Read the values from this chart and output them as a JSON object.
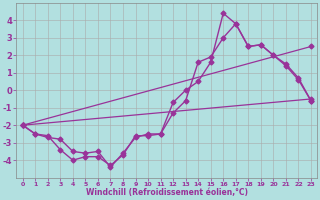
{
  "xlabel": "Windchill (Refroidissement éolien,°C)",
  "background_color": "#b2e0e0",
  "grid_color": "#aaaaaa",
  "line_color": "#993399",
  "xlim": [
    -0.5,
    23.5
  ],
  "ylim": [
    -5,
    5
  ],
  "xticks": [
    0,
    1,
    2,
    3,
    4,
    5,
    6,
    7,
    8,
    9,
    10,
    11,
    12,
    13,
    14,
    15,
    16,
    17,
    18,
    19,
    20,
    21,
    22,
    23
  ],
  "yticks": [
    -4,
    -3,
    -2,
    -1,
    0,
    1,
    2,
    3,
    4
  ],
  "series": [
    {
      "x": [
        0,
        1,
        2,
        3,
        4,
        5,
        6,
        7,
        8,
        9,
        10,
        11,
        12,
        13,
        14,
        15,
        16,
        17,
        18,
        19,
        20,
        21,
        22,
        23
      ],
      "y": [
        -2,
        -2.5,
        -2.7,
        -2.8,
        -3.5,
        -3.6,
        -3.5,
        -4.4,
        -3.6,
        -2.7,
        -2.5,
        -2.5,
        -0.7,
        0.0,
        0.5,
        1.6,
        4.4,
        3.8,
        2.5,
        2.6,
        2.0,
        1.5,
        0.7,
        -0.6
      ],
      "marker": "D",
      "markersize": 2.5,
      "linewidth": 1.0,
      "has_marker": true
    },
    {
      "x": [
        0,
        1,
        2,
        3,
        4,
        5,
        6,
        7,
        8,
        9,
        10,
        11,
        12,
        13,
        14,
        15,
        16,
        17,
        18,
        19,
        20,
        21,
        22,
        23
      ],
      "y": [
        -2,
        -2.5,
        -2.6,
        -3.4,
        -4.0,
        -3.8,
        -3.8,
        -4.3,
        -3.7,
        -2.6,
        -2.6,
        -2.5,
        -1.3,
        -0.6,
        1.6,
        1.9,
        3.0,
        3.8,
        2.5,
        2.6,
        2.0,
        1.4,
        0.6,
        -0.6
      ],
      "marker": "D",
      "markersize": 2.5,
      "linewidth": 1.0,
      "has_marker": true
    },
    {
      "x": [
        0,
        23
      ],
      "y": [
        -2,
        -0.5
      ],
      "marker": "D",
      "markersize": 2.5,
      "linewidth": 0.9,
      "has_marker": true
    },
    {
      "x": [
        0,
        23
      ],
      "y": [
        -2,
        2.5
      ],
      "marker": "D",
      "markersize": 2.5,
      "linewidth": 0.9,
      "has_marker": true
    }
  ]
}
